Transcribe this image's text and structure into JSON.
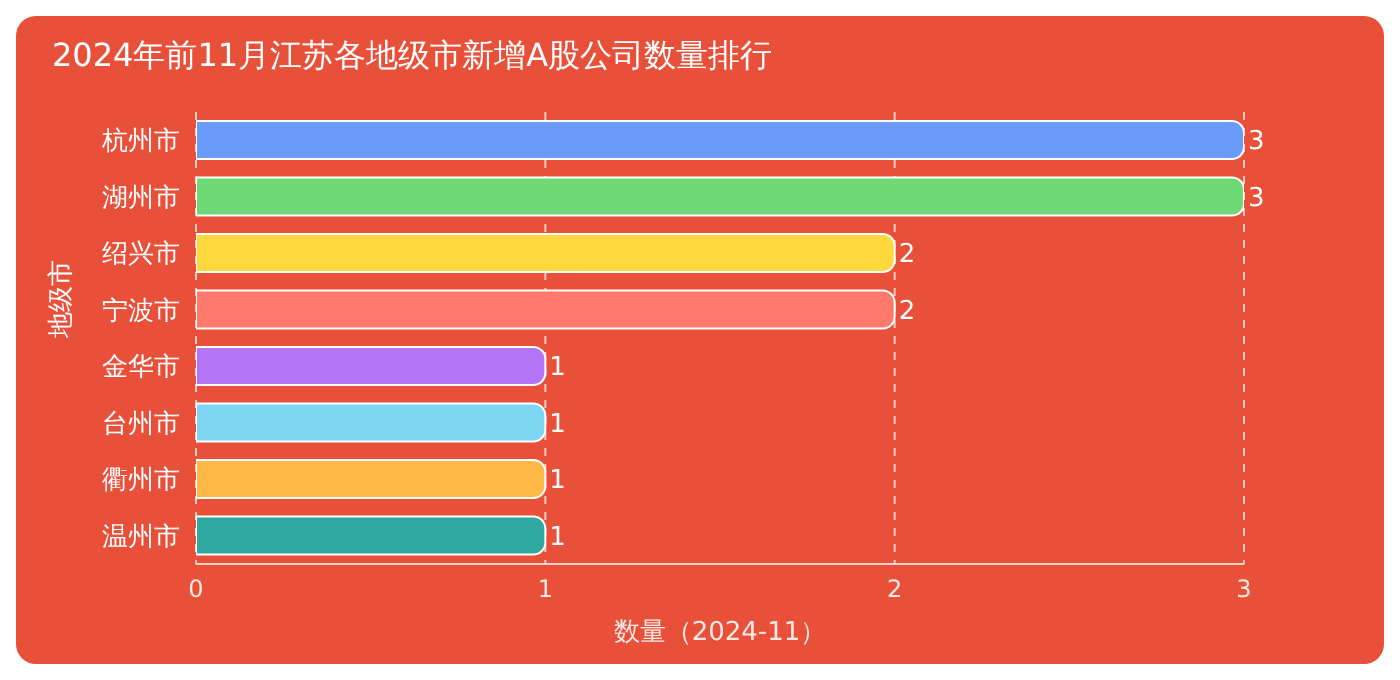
{
  "chart_data": {
    "type": "bar",
    "orientation": "horizontal",
    "title": "2024年前11月江苏各地级市新增A股公司数量排行",
    "xlabel": "数量（2024-11）",
    "ylabel": "地级市",
    "categories": [
      "杭州市",
      "湖州市",
      "绍兴市",
      "宁波市",
      "金华市",
      "台州市",
      "衢州市",
      "温州市"
    ],
    "values": [
      3,
      3,
      2,
      2,
      1,
      1,
      1,
      1
    ],
    "colors": [
      "#6b9bfa",
      "#6fd876",
      "#ffd83e",
      "#ff7a6c",
      "#b374f5",
      "#7fd6f2",
      "#ffb845",
      "#2fa8a0"
    ],
    "xlim": [
      0,
      3
    ],
    "xticks": [
      0,
      1,
      2,
      3
    ],
    "grid": "x",
    "data_labels": true
  }
}
